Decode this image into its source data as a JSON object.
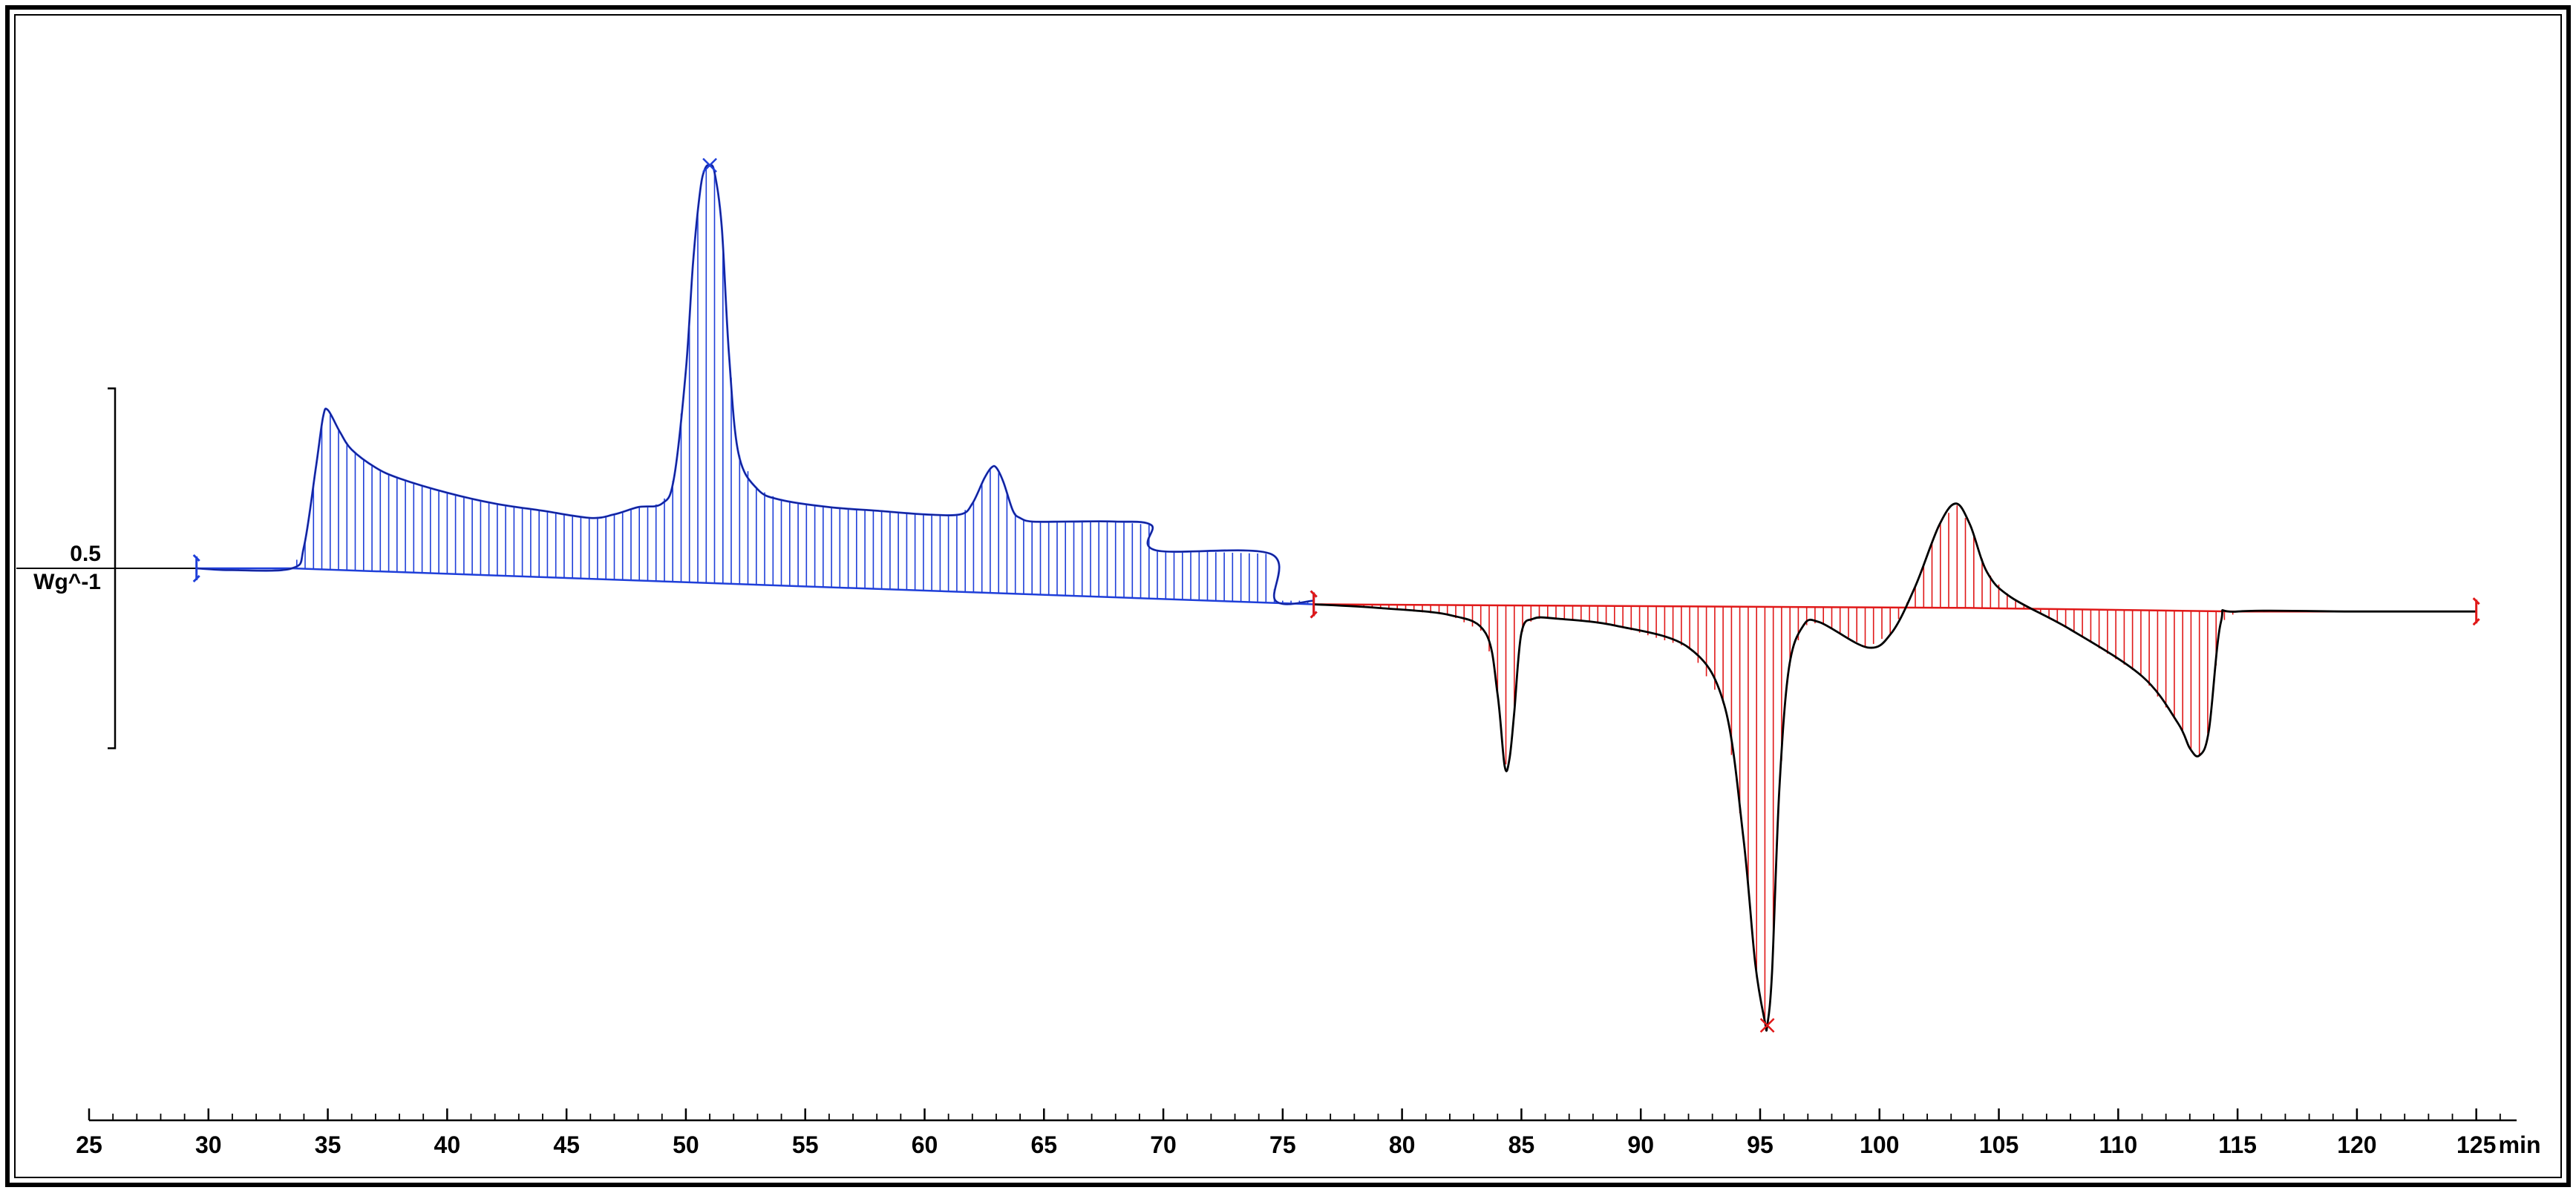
{
  "chart_data": {
    "type": "line",
    "title": "",
    "xlabel": "",
    "ylabel": "",
    "x_unit": "min",
    "xlim": [
      25,
      127
    ],
    "ylim": [
      -1.35,
      1.18
    ],
    "x_major_ticks": [
      25,
      30,
      35,
      40,
      45,
      50,
      55,
      60,
      65,
      70,
      75,
      80,
      85,
      90,
      95,
      100,
      105,
      110,
      115,
      120,
      125
    ],
    "x_minor_tick_step": 1,
    "scale_bar": {
      "label": "0.5",
      "unit": "Wg^-1",
      "length": 0.5
    },
    "grid": false,
    "legend": "none",
    "colors": {
      "segment_1": "#1f3fd9",
      "segment_2": "#e01818",
      "curve": "#000000",
      "frame": "#000000"
    },
    "series": [
      {
        "segment": "heating",
        "color": "#1f3fd9",
        "range": [
          29.5,
          76.3
        ],
        "peak_marker_x": 51.0,
        "x": [
          29.5,
          31.0,
          33.5,
          34.0,
          34.5,
          34.8,
          35.0,
          35.5,
          36.0,
          37.0,
          38.0,
          40.0,
          42.0,
          44.0,
          46.0,
          47.0,
          48.0,
          49.0,
          49.5,
          50.0,
          50.3,
          50.6,
          50.8,
          51.0,
          51.2,
          51.5,
          51.8,
          52.2,
          53.0,
          54.0,
          56.0,
          58.0,
          60.0,
          61.5,
          62.0,
          62.5,
          62.8,
          63.0,
          63.3,
          63.7,
          64.0,
          64.5,
          66.0,
          68.0,
          69.5,
          69.7,
          74.5,
          74.7,
          76.3
        ],
        "y": [
          0.0,
          -0.005,
          0.0,
          0.06,
          0.28,
          0.42,
          0.44,
          0.38,
          0.33,
          0.28,
          0.25,
          0.21,
          0.18,
          0.16,
          0.14,
          0.15,
          0.17,
          0.18,
          0.25,
          0.55,
          0.85,
          1.05,
          1.11,
          1.12,
          1.1,
          0.95,
          0.6,
          0.32,
          0.22,
          0.19,
          0.17,
          0.16,
          0.15,
          0.15,
          0.18,
          0.25,
          0.28,
          0.28,
          0.24,
          0.16,
          0.14,
          0.13,
          0.13,
          0.13,
          0.12,
          0.05,
          0.04,
          -0.09,
          -0.09
        ],
        "baseline": [
          [
            29.5,
            0.0
          ],
          [
            33.5,
            0.0
          ],
          [
            76.3,
            -0.1
          ]
        ]
      },
      {
        "segment": "cooling",
        "color": "#e01818",
        "range": [
          76.3,
          125.0
        ],
        "peak_marker_x": 95.3,
        "x": [
          76.3,
          79.0,
          82.0,
          83.5,
          84.0,
          84.3,
          84.5,
          84.7,
          85.0,
          85.5,
          86.5,
          89.0,
          92.0,
          93.5,
          94.3,
          94.8,
          95.2,
          95.3,
          95.5,
          95.8,
          96.2,
          96.8,
          97.5,
          99.5,
          100.5,
          101.5,
          102.5,
          103.2,
          103.8,
          104.5,
          105.5,
          108.0,
          111.0,
          112.5,
          113.0,
          113.4,
          113.8,
          114.3,
          115.0,
          120.0,
          125.0
        ],
        "y": [
          -0.1,
          -0.11,
          -0.13,
          -0.18,
          -0.35,
          -0.55,
          -0.53,
          -0.4,
          -0.18,
          -0.14,
          -0.14,
          -0.16,
          -0.22,
          -0.38,
          -0.75,
          -1.1,
          -1.26,
          -1.27,
          -1.12,
          -0.62,
          -0.28,
          -0.16,
          -0.15,
          -0.22,
          -0.18,
          -0.05,
          0.12,
          0.18,
          0.12,
          -0.01,
          -0.08,
          -0.17,
          -0.3,
          -0.43,
          -0.5,
          -0.52,
          -0.45,
          -0.15,
          -0.12,
          -0.12,
          -0.12
        ],
        "baseline": [
          [
            76.3,
            -0.1
          ],
          [
            103.8,
            -0.11
          ],
          [
            115.0,
            -0.12
          ],
          [
            125.0,
            -0.12
          ]
        ]
      }
    ]
  }
}
